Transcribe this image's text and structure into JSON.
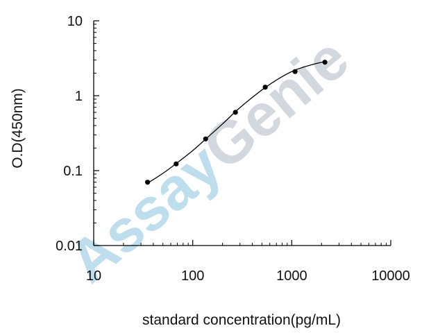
{
  "watermark": {
    "part1": "Assay",
    "part2": "Genie",
    "color1": "#a9d4e8",
    "color2": "#c4ccd2"
  },
  "chart_data": {
    "type": "scatter",
    "xscale": "log",
    "yscale": "log",
    "xlim": [
      10,
      10000
    ],
    "ylim": [
      0.01,
      10
    ],
    "xlabel": "standard concentration(pg/mL)",
    "ylabel": "O.D(450nm)",
    "x_ticks": [
      "10",
      "100",
      "1000",
      "10000"
    ],
    "y_ticks": [
      "0.01",
      "0.1",
      "1",
      "10"
    ],
    "grid": false,
    "series": [
      {
        "points": [
          {
            "x": 35,
            "y": 0.07
          },
          {
            "x": 68,
            "y": 0.123
          },
          {
            "x": 135,
            "y": 0.265
          },
          {
            "x": 270,
            "y": 0.6
          },
          {
            "x": 540,
            "y": 1.3
          },
          {
            "x": 1080,
            "y": 2.1
          },
          {
            "x": 2160,
            "y": 2.8
          }
        ]
      }
    ],
    "fit_curve": {
      "type": "four-parameter logistic",
      "points": [
        {
          "x": 35,
          "y": 0.068
        },
        {
          "x": 50,
          "y": 0.092
        },
        {
          "x": 70,
          "y": 0.128
        },
        {
          "x": 100,
          "y": 0.185
        },
        {
          "x": 140,
          "y": 0.275
        },
        {
          "x": 200,
          "y": 0.42
        },
        {
          "x": 280,
          "y": 0.64
        },
        {
          "x": 400,
          "y": 0.95
        },
        {
          "x": 560,
          "y": 1.33
        },
        {
          "x": 800,
          "y": 1.8
        },
        {
          "x": 1100,
          "y": 2.22
        },
        {
          "x": 1600,
          "y": 2.6
        },
        {
          "x": 2160,
          "y": 2.85
        }
      ]
    },
    "colors": {
      "points": "#000000",
      "curve": "#000000",
      "axes": "#000000"
    }
  }
}
